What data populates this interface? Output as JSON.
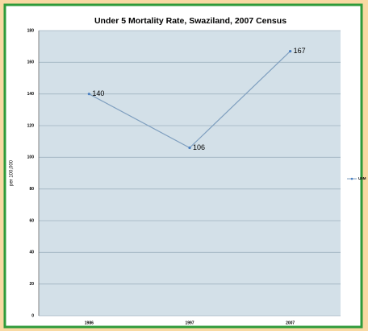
{
  "chart_data": {
    "type": "line",
    "title": "Under 5 Mortality Rate, Swaziland, 2007 Census",
    "y_label": "per 100,000",
    "categories": [
      "1986",
      "1997",
      "2007"
    ],
    "series": [
      {
        "name": "U5M",
        "color": "#7f9fbf",
        "values": [
          140,
          106,
          167
        ]
      }
    ],
    "ylim": [
      0,
      180
    ],
    "yticks": [
      0,
      20,
      40,
      60,
      80,
      100,
      120,
      140,
      160,
      180
    ],
    "grid": true,
    "legend": "right"
  }
}
